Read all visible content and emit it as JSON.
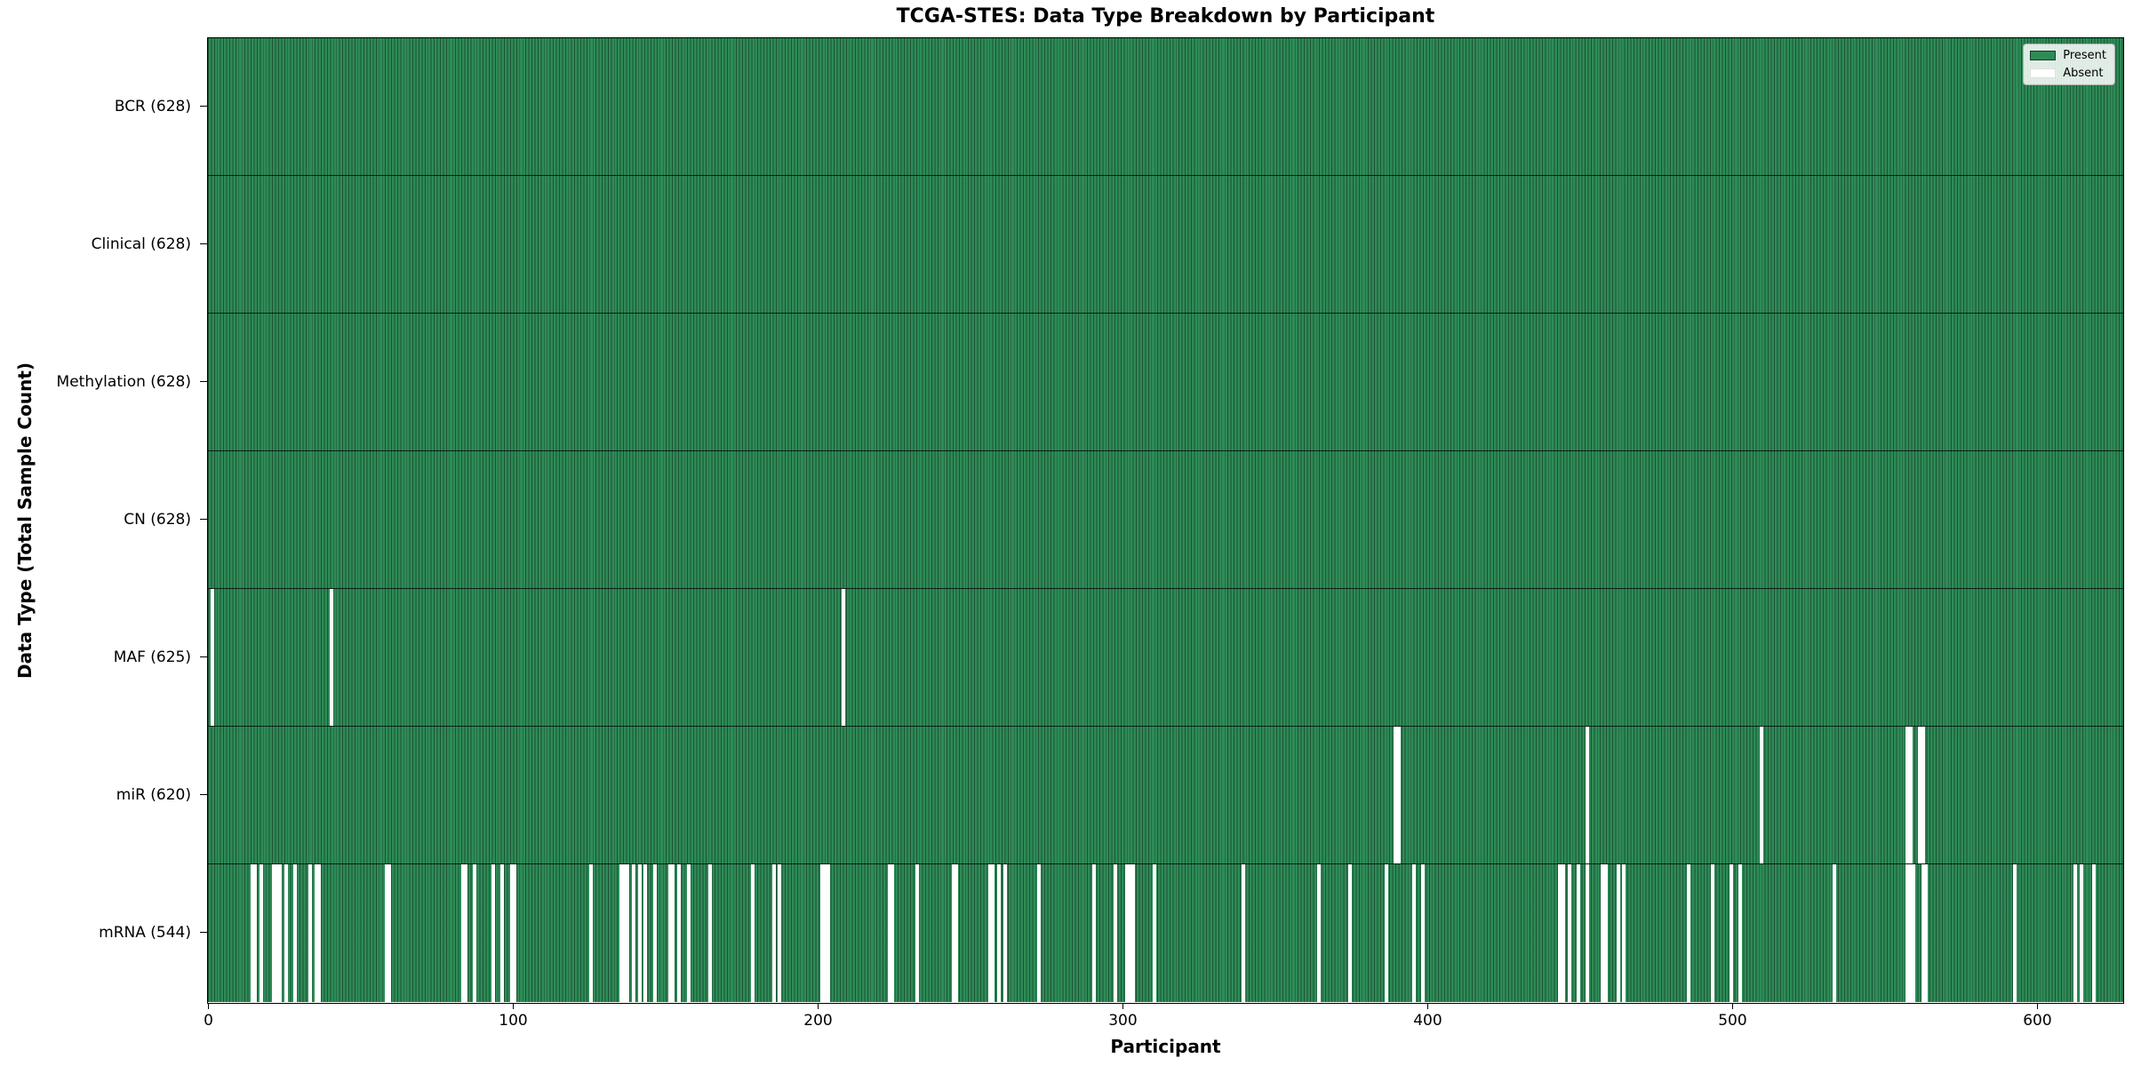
{
  "figure": {
    "title": "TCGA-STES: Data Type Breakdown by Participant",
    "xlabel": "Participant",
    "ylabel": "Data Type (Total Sample Count)"
  },
  "legend": {
    "entries": [
      {
        "label": "Present",
        "color": "#2e8b57"
      },
      {
        "label": "Absent",
        "color": "#ffffff"
      }
    ],
    "position": "upper right"
  },
  "chart_data": {
    "type": "heatmap",
    "title": "TCGA-STES: Data Type Breakdown by Participant",
    "xlabel": "Participant",
    "ylabel": "Data Type (Total Sample Count)",
    "x_ticks": [
      0,
      100,
      200,
      300,
      400,
      500,
      600
    ],
    "x_range": [
      0,
      628
    ],
    "n_participants": 628,
    "grid": false,
    "present_color": "#2e8b57",
    "absent_color": "#ffffff",
    "bar_edge_color": "rgba(0,0,0,0.40)",
    "rows": [
      {
        "label": "BCR (628)",
        "total_present": 628,
        "absent_participants": []
      },
      {
        "label": "Clinical (628)",
        "total_present": 628,
        "absent_participants": []
      },
      {
        "label": "Methylation (628)",
        "total_present": 628,
        "absent_participants": []
      },
      {
        "label": "CN (628)",
        "total_present": 628,
        "absent_participants": []
      },
      {
        "label": "MAF (625)",
        "total_present": 625,
        "absent_participants": [
          1,
          40,
          208
        ]
      },
      {
        "label": "miR (620)",
        "total_present": 620,
        "absent_participants": [
          389,
          390,
          452,
          509,
          557,
          558,
          561,
          562
        ]
      },
      {
        "label": "mRNA (544)",
        "total_present": 544,
        "absent_participants": [
          14,
          15,
          17,
          21,
          22,
          23,
          25,
          28,
          33,
          35,
          36,
          58,
          59,
          83,
          84,
          87,
          93,
          96,
          99,
          100,
          125,
          135,
          136,
          137,
          139,
          141,
          143,
          146,
          151,
          152,
          154,
          157,
          164,
          178,
          185,
          187,
          201,
          202,
          203,
          223,
          224,
          232,
          244,
          245,
          256,
          257,
          259,
          261,
          272,
          290,
          297,
          301,
          302,
          303,
          310,
          339,
          364,
          374,
          386,
          395,
          398,
          443,
          444,
          446,
          449,
          452,
          457,
          458,
          462,
          464,
          485,
          493,
          499,
          502,
          533,
          557,
          558,
          559,
          562,
          563,
          592,
          612,
          614,
          618
        ]
      }
    ]
  }
}
